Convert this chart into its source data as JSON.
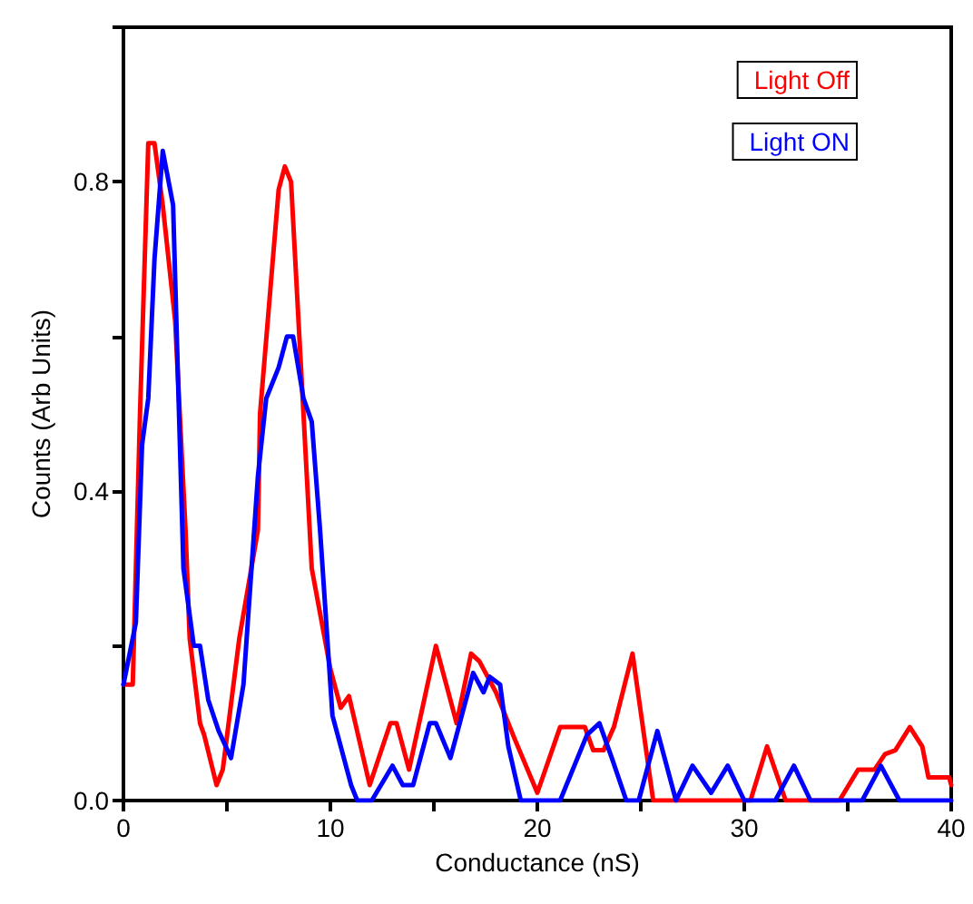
{
  "chart_data": {
    "type": "line",
    "xlabel": "Conductance (nS)",
    "ylabel": "Counts (Arb Units)",
    "xlim": [
      0,
      40
    ],
    "xticks": [
      0,
      {
        "value": 5,
        "label": null
      },
      10,
      {
        "value": 15,
        "label": null
      },
      20,
      {
        "value": 25,
        "label": null
      },
      30,
      {
        "value": 35,
        "label": null
      },
      40
    ],
    "ylim": [
      0,
      1
    ],
    "yticks": [
      {
        "value": 0,
        "label": "0.0"
      },
      {
        "value": 0.2,
        "label": null
      },
      0.4,
      {
        "value": 0.6,
        "label": null
      },
      0.8,
      {
        "value": 1,
        "label": null
      }
    ],
    "grid": false,
    "legend": "top right",
    "marker": "none",
    "line_style": "solid",
    "series": [
      {
        "name": "Light Off",
        "color": "#ff0000",
        "x": [
          0,
          0.45,
          0.8,
          1.2,
          1.5,
          1.9,
          2.5,
          3.0,
          3.2,
          3.7,
          3.9,
          4.5,
          4.8,
          5.6,
          6.5,
          6.6,
          7.5,
          7.8,
          8.1,
          8.7,
          9.1,
          10.0,
          10.5,
          10.9,
          11.9,
          12.9,
          13.2,
          13.8,
          15.1,
          16.1,
          16.8,
          17.2,
          18.0,
          18.9,
          20.0,
          21.1,
          22.3,
          22.7,
          23.2,
          23.7,
          24.6,
          25.6,
          30.3,
          31.1,
          32.0,
          34.6,
          35.5,
          36.3,
          36.8,
          37.3,
          38.0,
          38.6,
          38.9,
          39.9,
          40
        ],
        "values": [
          0.15,
          0.15,
          0.5,
          0.85,
          0.85,
          0.77,
          0.62,
          0.35,
          0.21,
          0.1,
          0.085,
          0.02,
          0.04,
          0.21,
          0.35,
          0.5,
          0.79,
          0.82,
          0.8,
          0.5,
          0.3,
          0.17,
          0.12,
          0.135,
          0.02,
          0.1,
          0.1,
          0.04,
          0.2,
          0.1,
          0.19,
          0.18,
          0.14,
          0.08,
          0.01,
          0.095,
          0.095,
          0.065,
          0.065,
          0.095,
          0.19,
          0,
          0,
          0.07,
          0,
          0,
          0.04,
          0.04,
          0.06,
          0.065,
          0.095,
          0.07,
          0.03,
          0.03,
          0.02
        ]
      },
      {
        "name": "Light ON",
        "color": "#0000ff",
        "x": [
          0,
          0.6,
          0.9,
          1.2,
          1.5,
          1.9,
          2.4,
          2.6,
          2.9,
          3.4,
          3.7,
          4.1,
          4.6,
          5.2,
          5.8,
          6.5,
          6.9,
          7.5,
          7.9,
          8.2,
          8.7,
          9.1,
          9.5,
          10.1,
          11.0,
          11.3,
          12.0,
          13.0,
          13.5,
          14.0,
          14.8,
          15.1,
          15.8,
          16.9,
          17.4,
          17.7,
          18.2,
          18.6,
          19.2,
          21.1,
          22.4,
          23.0,
          23.6,
          24.3,
          24.9,
          25.8,
          26.7,
          27.5,
          28.4,
          29.2,
          30.0,
          31.5,
          32.4,
          33.2,
          35.7,
          36.6,
          37.5,
          40
        ],
        "values": [
          0.15,
          0.23,
          0.46,
          0.52,
          0.7,
          0.84,
          0.77,
          0.58,
          0.3,
          0.2,
          0.2,
          0.13,
          0.09,
          0.055,
          0.15,
          0.42,
          0.52,
          0.56,
          0.6,
          0.6,
          0.52,
          0.49,
          0.35,
          0.11,
          0.02,
          0,
          0,
          0.045,
          0.02,
          0.02,
          0.1,
          0.1,
          0.055,
          0.165,
          0.14,
          0.16,
          0.15,
          0.07,
          0,
          0,
          0.085,
          0.1,
          0.055,
          0,
          0,
          0.09,
          0,
          0.045,
          0.01,
          0.045,
          0,
          0,
          0.045,
          0,
          0,
          0.045,
          0,
          0
        ]
      }
    ]
  }
}
